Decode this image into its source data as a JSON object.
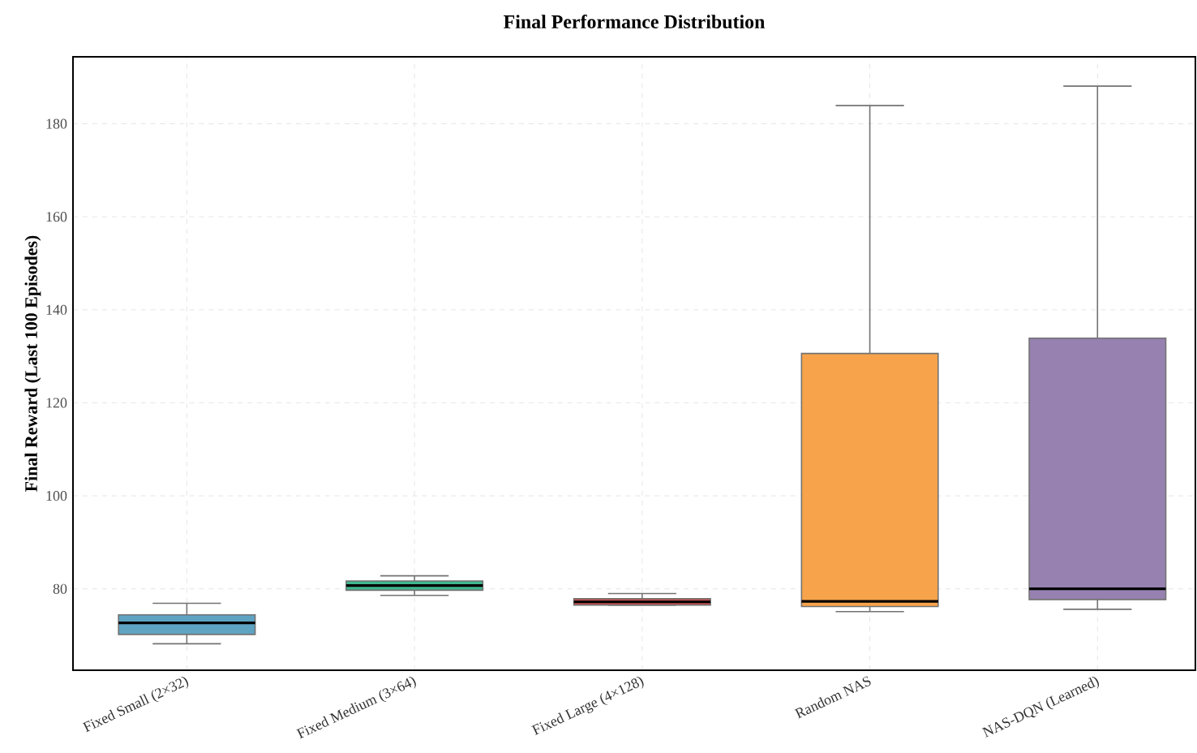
{
  "chart_data": {
    "type": "box",
    "title": "Final Performance Distribution",
    "ylabel": "Final Reward (Last 100 Episodes)",
    "categories": [
      "Fixed Small (2×32)",
      "Fixed Medium (3×64)",
      "Fixed Large (4×128)",
      "Random NAS",
      "NAS-DQN (Learned)"
    ],
    "colors": [
      "#5fa3c3",
      "#3fb68e",
      "#c24f4f",
      "#f7a34b",
      "#9681b0"
    ],
    "boxes": [
      {
        "low": 68.2,
        "q1": 70.2,
        "median": 72.7,
        "q3": 74.4,
        "high": 76.9
      },
      {
        "low": 78.6,
        "q1": 79.7,
        "median": 80.7,
        "q3": 81.7,
        "high": 82.8
      },
      {
        "low": 76.5,
        "q1": 76.5,
        "median": 77.2,
        "q3": 77.9,
        "high": 79.0
      },
      {
        "low": 75.1,
        "q1": 76.2,
        "median": 77.3,
        "q3": 130.6,
        "high": 183.9
      },
      {
        "low": 75.6,
        "q1": 77.7,
        "median": 80.0,
        "q3": 133.9,
        "high": 188.1
      }
    ],
    "ylim": [
      62.5,
      194.4
    ],
    "yticks": [
      80,
      100,
      120,
      140,
      160,
      180
    ],
    "grid": true
  }
}
